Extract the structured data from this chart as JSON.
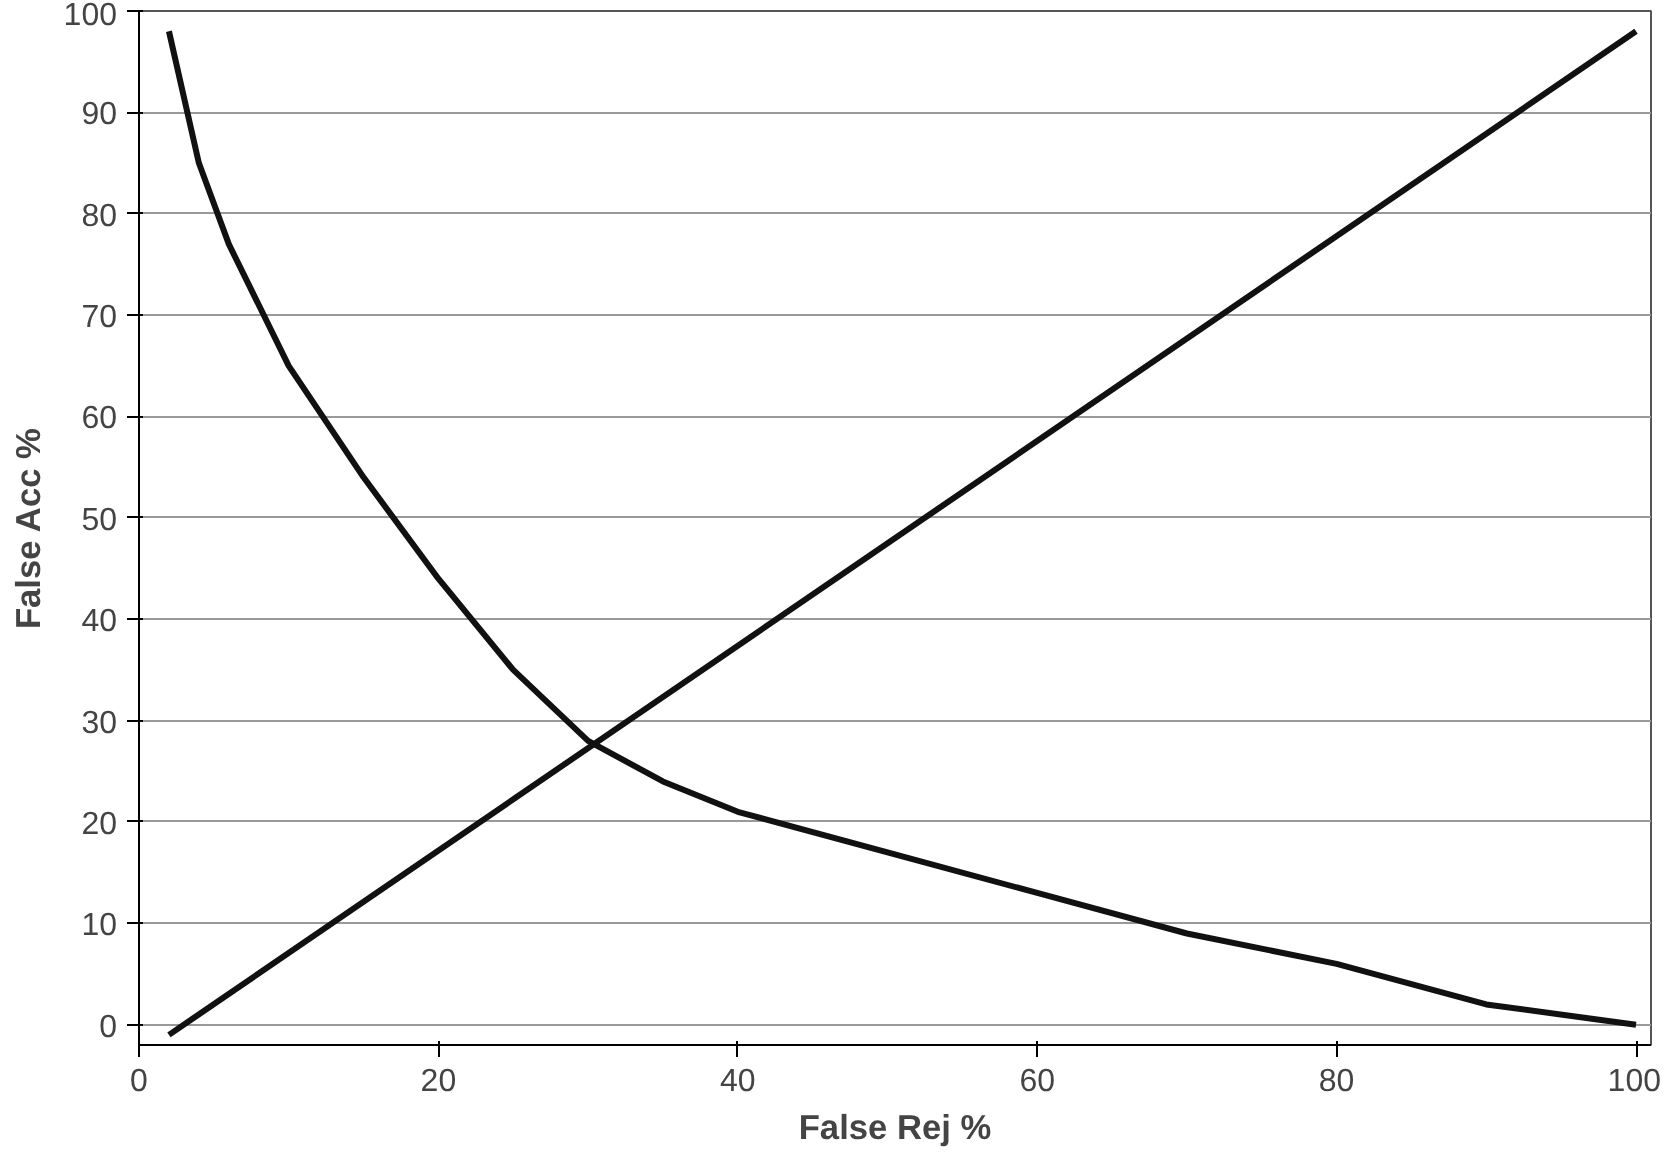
{
  "chart_data": {
    "type": "line",
    "xlabel": "False Rej %",
    "ylabel": "False Acc %",
    "xlim": [
      0,
      101
    ],
    "ylim": [
      -2,
      100
    ],
    "xticks": [
      0,
      20,
      40,
      60,
      80,
      100
    ],
    "yticks": [
      0,
      10,
      20,
      30,
      40,
      50,
      60,
      70,
      80,
      90,
      100
    ],
    "grid": "y",
    "marker": "none",
    "line_style": "solid",
    "series": [
      {
        "color": "#111111",
        "x": [
          2,
          4,
          6,
          10,
          15,
          20,
          25,
          30,
          35,
          40,
          50,
          60,
          70,
          80,
          90,
          100
        ],
        "values": [
          98,
          85,
          77,
          65,
          54,
          44,
          35,
          28,
          24,
          21,
          17,
          13,
          9,
          6,
          2,
          0
        ]
      },
      {
        "color": "#111111",
        "x": [
          2,
          100
        ],
        "values": [
          -1,
          98
        ]
      }
    ]
  }
}
